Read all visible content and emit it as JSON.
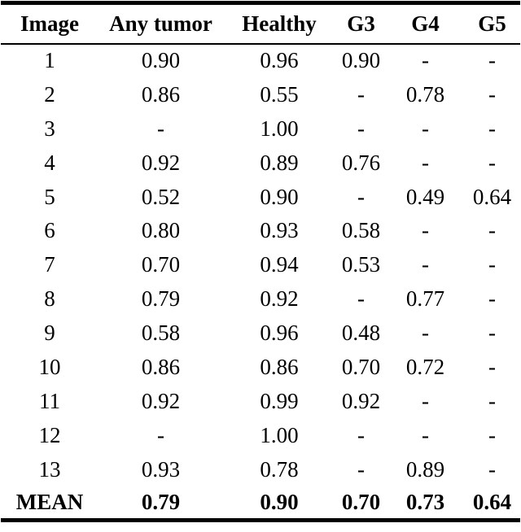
{
  "colors": {
    "background": "#ffffff",
    "text": "#000000",
    "rule": "#000000"
  },
  "table": {
    "columns": [
      "Image",
      "Any tumor",
      "Healthy",
      "G3",
      "G4",
      "G5"
    ],
    "rows": [
      {
        "label": "1",
        "values": [
          "0.90",
          "0.96",
          "0.90",
          "-",
          "-"
        ]
      },
      {
        "label": "2",
        "values": [
          "0.86",
          "0.55",
          "-",
          "0.78",
          "-"
        ]
      },
      {
        "label": "3",
        "values": [
          "-",
          "1.00",
          "-",
          "-",
          "-"
        ]
      },
      {
        "label": "4",
        "values": [
          "0.92",
          "0.89",
          "0.76",
          "-",
          "-"
        ]
      },
      {
        "label": "5",
        "values": [
          "0.52",
          "0.90",
          "-",
          "0.49",
          "0.64"
        ]
      },
      {
        "label": "6",
        "values": [
          "0.80",
          "0.93",
          "0.58",
          "-",
          "-"
        ]
      },
      {
        "label": "7",
        "values": [
          "0.70",
          "0.94",
          "0.53",
          "-",
          "-"
        ]
      },
      {
        "label": "8",
        "values": [
          "0.79",
          "0.92",
          "-",
          "0.77",
          "-"
        ]
      },
      {
        "label": "9",
        "values": [
          "0.58",
          "0.96",
          "0.48",
          "-",
          "-"
        ]
      },
      {
        "label": "10",
        "values": [
          "0.86",
          "0.86",
          "0.70",
          "0.72",
          "-"
        ]
      },
      {
        "label": "11",
        "values": [
          "0.92",
          "0.99",
          "0.92",
          "-",
          "-"
        ]
      },
      {
        "label": "12",
        "values": [
          "-",
          "1.00",
          "-",
          "-",
          "-"
        ]
      },
      {
        "label": "13",
        "values": [
          "0.93",
          "0.78",
          "-",
          "0.89",
          "-"
        ]
      },
      {
        "label": "MEAN",
        "values": [
          "0.79",
          "0.90",
          "0.70",
          "0.73",
          "0.64"
        ]
      }
    ]
  }
}
